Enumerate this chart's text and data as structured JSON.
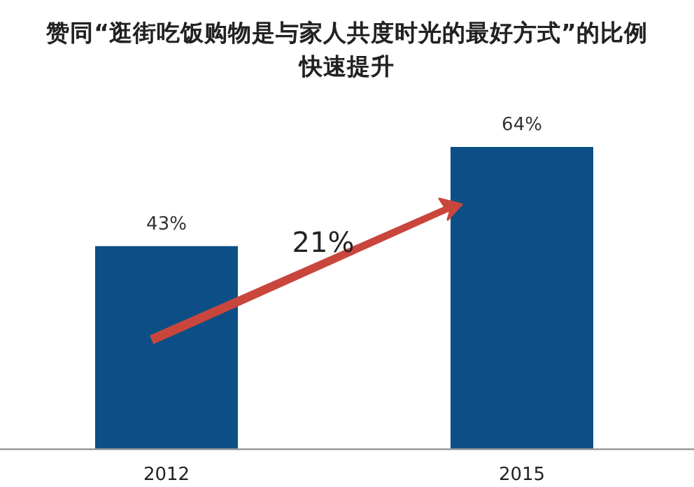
{
  "chart_data": {
    "type": "bar",
    "title": "赞同“逛街吃饭购物是与家人共度时光的最好方式”的比例快速提升",
    "categories": [
      "2012",
      "2015"
    ],
    "values": [
      43,
      64
    ],
    "value_labels": [
      "43%",
      "64%"
    ],
    "color": "#0b4f86",
    "annotations": [
      "21%"
    ]
  }
}
